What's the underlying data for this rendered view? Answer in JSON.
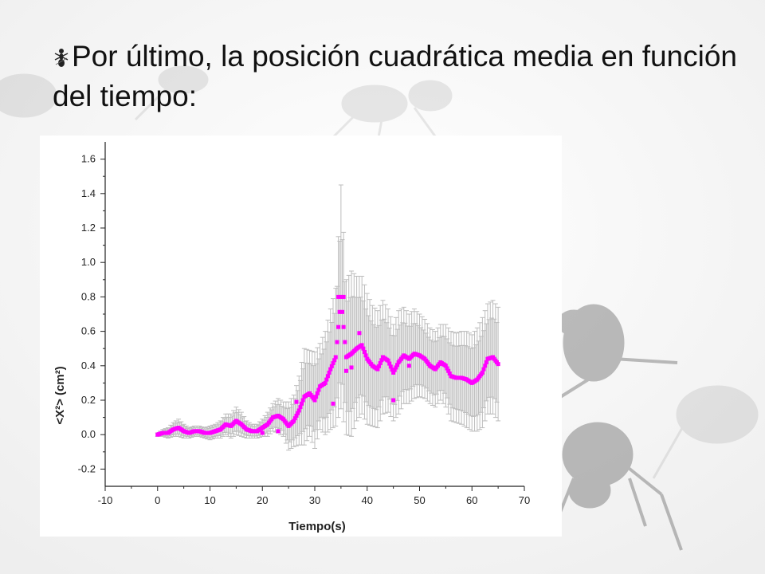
{
  "slide": {
    "title": "Por último, la posición cuadrática media en función del tiempo:",
    "bullet_icon": "ant-bullet-icon",
    "background_icon": "ant-photo-background"
  },
  "colors": {
    "points": "#ff00ff",
    "error_bars": "#bdbdbd",
    "axes": "#222222"
  },
  "chart_data": {
    "type": "scatter",
    "xlabel": "Tiempo(s)",
    "ylabel": "<X²> (cm²)",
    "xlim": [
      -10,
      70
    ],
    "ylim": [
      -0.3,
      1.7
    ],
    "xticks": [
      -10,
      0,
      10,
      20,
      30,
      40,
      50,
      60,
      70
    ],
    "yticks": [
      -0.2,
      0.0,
      0.2,
      0.4,
      0.6,
      0.8,
      1.0,
      1.2,
      1.4,
      1.6
    ],
    "xtick_labels": [
      "-10",
      "0",
      "10",
      "20",
      "30",
      "40",
      "50",
      "60",
      "70"
    ],
    "ytick_labels": [
      "-0.2",
      "0.0",
      "0.2",
      "0.4",
      "0.6",
      "0.8",
      "1.0",
      "1.2",
      "1.4",
      "1.6"
    ],
    "grid": false,
    "legend": "none",
    "error_bars": true,
    "series": [
      {
        "points": [
          [
            0,
            0.0,
            0.01
          ],
          [
            1,
            0.01,
            0.02
          ],
          [
            2,
            0.01,
            0.03
          ],
          [
            3,
            0.03,
            0.04
          ],
          [
            4,
            0.04,
            0.05
          ],
          [
            5,
            0.02,
            0.04
          ],
          [
            6,
            0.01,
            0.03
          ],
          [
            7,
            0.02,
            0.03
          ],
          [
            8,
            0.02,
            0.03
          ],
          [
            9,
            0.01,
            0.03
          ],
          [
            10,
            0.01,
            0.04
          ],
          [
            11,
            0.02,
            0.04
          ],
          [
            12,
            0.03,
            0.05
          ],
          [
            13,
            0.06,
            0.06
          ],
          [
            14,
            0.05,
            0.07
          ],
          [
            15,
            0.08,
            0.08
          ],
          [
            16,
            0.06,
            0.07
          ],
          [
            17,
            0.03,
            0.05
          ],
          [
            18,
            0.02,
            0.04
          ],
          [
            19,
            0.02,
            0.04
          ],
          [
            20,
            0.04,
            0.05
          ],
          [
            21,
            0.06,
            0.07
          ],
          [
            22,
            0.1,
            0.08
          ],
          [
            23,
            0.11,
            0.1
          ],
          [
            24,
            0.09,
            0.1
          ],
          [
            25,
            0.05,
            0.14
          ],
          [
            26,
            0.08,
            0.15
          ],
          [
            27,
            0.14,
            0.2
          ],
          [
            28,
            0.22,
            0.28
          ],
          [
            29,
            0.24,
            0.25
          ],
          [
            30,
            0.2,
            0.28
          ],
          [
            31,
            0.28,
            0.25
          ],
          [
            32,
            0.3,
            0.3
          ],
          [
            33,
            0.38,
            0.35
          ],
          [
            34,
            0.45,
            0.4
          ],
          [
            35,
            0.8,
            0.65
          ],
          [
            36,
            0.45,
            0.45
          ],
          [
            37,
            0.47,
            0.48
          ],
          [
            38,
            0.5,
            0.42
          ],
          [
            39,
            0.52,
            0.4
          ],
          [
            40,
            0.44,
            0.38
          ],
          [
            41,
            0.4,
            0.35
          ],
          [
            42,
            0.38,
            0.34
          ],
          [
            43,
            0.45,
            0.33
          ],
          [
            44,
            0.43,
            0.3
          ],
          [
            45,
            0.36,
            0.28
          ],
          [
            46,
            0.42,
            0.3
          ],
          [
            47,
            0.46,
            0.28
          ],
          [
            48,
            0.44,
            0.26
          ],
          [
            49,
            0.47,
            0.26
          ],
          [
            50,
            0.46,
            0.24
          ],
          [
            51,
            0.44,
            0.23
          ],
          [
            52,
            0.4,
            0.22
          ],
          [
            53,
            0.38,
            0.22
          ],
          [
            54,
            0.42,
            0.22
          ],
          [
            55,
            0.4,
            0.24
          ],
          [
            56,
            0.34,
            0.26
          ],
          [
            57,
            0.33,
            0.26
          ],
          [
            58,
            0.33,
            0.27
          ],
          [
            59,
            0.32,
            0.28
          ],
          [
            60,
            0.3,
            0.28
          ],
          [
            61,
            0.32,
            0.3
          ],
          [
            62,
            0.36,
            0.32
          ],
          [
            63,
            0.44,
            0.32
          ],
          [
            64,
            0.45,
            0.33
          ],
          [
            65,
            0.41,
            0.33
          ]
        ],
        "extra_points": [
          [
            35.5,
            0.8
          ],
          [
            34.5,
            0.8
          ],
          [
            38.5,
            0.59
          ],
          [
            36,
            0.37
          ],
          [
            45,
            0.2
          ],
          [
            26.5,
            0.19
          ],
          [
            33.5,
            0.18
          ],
          [
            37,
            0.39
          ],
          [
            48,
            0.4
          ],
          [
            52,
            0.4
          ],
          [
            20,
            0.01
          ],
          [
            23,
            0.02
          ]
        ]
      }
    ]
  }
}
